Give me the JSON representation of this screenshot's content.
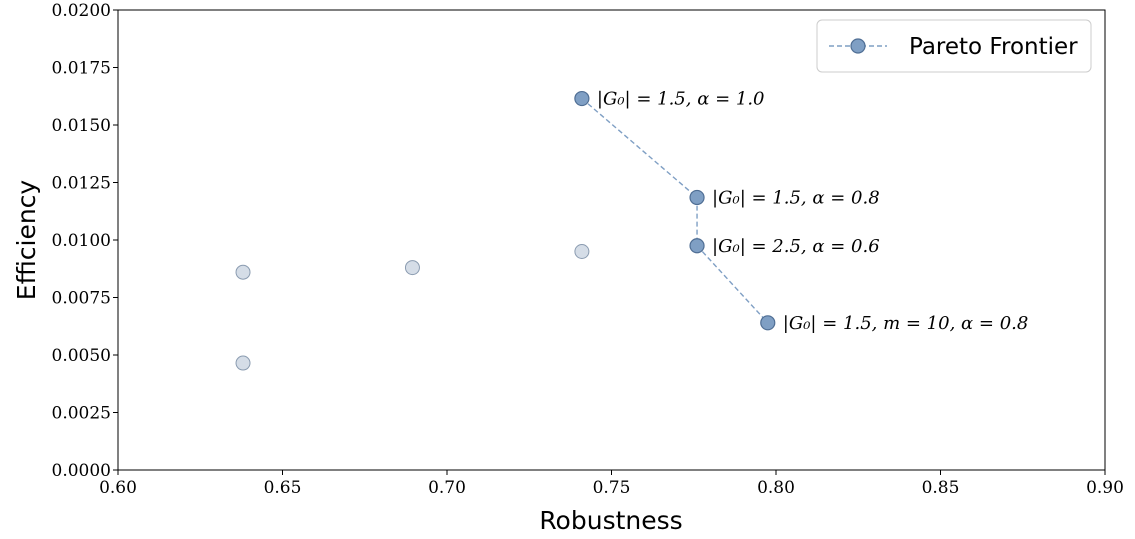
{
  "chart_data": {
    "type": "scatter",
    "xlabel": "Robustness",
    "ylabel": "Efficiency",
    "xlim": [
      0.6,
      0.9
    ],
    "ylim": [
      0.0,
      0.02
    ],
    "x_ticks": [
      "0.60",
      "0.65",
      "0.70",
      "0.75",
      "0.80",
      "0.85",
      "0.90"
    ],
    "y_ticks": [
      "0.0000",
      "0.0025",
      "0.0050",
      "0.0075",
      "0.0100",
      "0.0125",
      "0.0150",
      "0.0175",
      "0.0200"
    ],
    "legend_position": "top-right",
    "grid": false,
    "series": [
      {
        "name": "Pareto Frontier",
        "style": "dashed-line-with-markers",
        "color": "#7f9fc4",
        "points": [
          {
            "x": 0.741,
            "y": 0.01615,
            "label": "|G₀| = 1.5, α = 1.0"
          },
          {
            "x": 0.776,
            "y": 0.01185,
            "label": "|G₀| = 1.5, α = 0.8"
          },
          {
            "x": 0.776,
            "y": 0.00975,
            "label": "|G₀| = 2.5, α = 0.6"
          },
          {
            "x": 0.7975,
            "y": 0.0064,
            "label": "|G₀| = 1.5, m = 10, α = 0.8"
          }
        ]
      },
      {
        "style": "markers-only",
        "color": "#d5dde7",
        "points": [
          {
            "x": 0.638,
            "y": 0.0086
          },
          {
            "x": 0.638,
            "y": 0.00465
          },
          {
            "x": 0.6895,
            "y": 0.0088
          },
          {
            "x": 0.741,
            "y": 0.0095
          }
        ]
      }
    ]
  }
}
